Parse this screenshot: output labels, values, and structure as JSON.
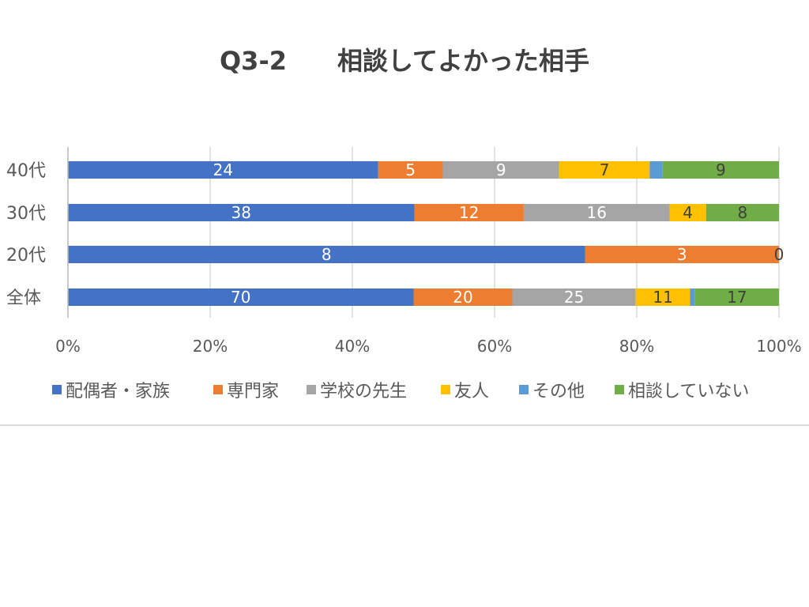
{
  "chart_data": {
    "type": "bar",
    "orientation": "horizontal",
    "stacked": "percent",
    "title": "Q3-2　　相談してよかった相手",
    "categories": [
      "40代",
      "30代",
      "20代",
      "全体"
    ],
    "series": [
      {
        "name": "配偶者・家族",
        "color": "#4472C4",
        "values": [
          24,
          38,
          8,
          70
        ]
      },
      {
        "name": "専門家",
        "color": "#ED7D31",
        "values": [
          5,
          12,
          3,
          20
        ]
      },
      {
        "name": "学校の先生",
        "color": "#A5A5A5",
        "values": [
          9,
          16,
          0,
          25
        ]
      },
      {
        "name": "友人",
        "color": "#FFC000",
        "values": [
          7,
          4,
          0,
          11
        ]
      },
      {
        "name": "その他",
        "color": "#5B9BD5",
        "values": [
          1,
          0,
          0,
          1
        ]
      },
      {
        "name": "相談していない",
        "color": "#70AD47",
        "values": [
          9,
          8,
          0,
          17
        ]
      }
    ],
    "data_labels": [
      [
        "24",
        "5",
        "9",
        "7",
        "",
        "9"
      ],
      [
        "38",
        "12",
        "16",
        "4",
        "",
        "8"
      ],
      [
        "8",
        "3",
        "0",
        "",
        "",
        ""
      ],
      [
        "70",
        "20",
        "25",
        "11",
        "",
        "17"
      ]
    ],
    "x_ticks": [
      "0%",
      "20%",
      "40%",
      "60%",
      "80%",
      "100%"
    ],
    "xlim": [
      0,
      100
    ],
    "grid": true,
    "legend": "bottom"
  }
}
